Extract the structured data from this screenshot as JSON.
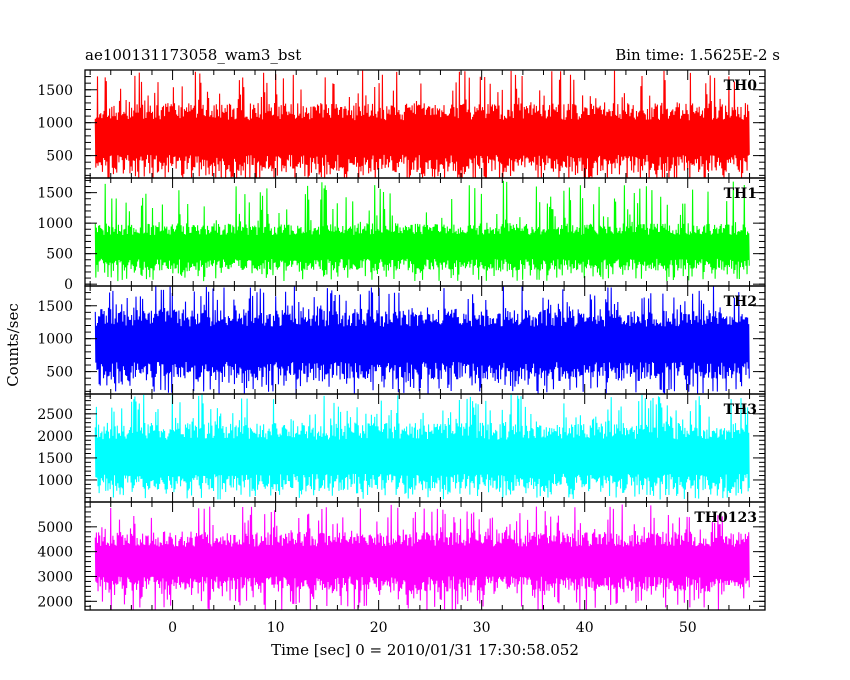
{
  "chart_data": {
    "type": "line",
    "title_left": "ae100131173058_wam3_bst",
    "title_right": "Bin time: 1.5625E-2 s",
    "xlabel": "Time [sec] 0 = 2010/01/31 17:30:58.052",
    "ylabel": "Counts/sec",
    "xlim": [
      -8.5,
      57.5
    ],
    "x_ticks": [
      0,
      10,
      20,
      30,
      40,
      50
    ],
    "x_data_range": [
      -7.5,
      56.0
    ],
    "bin_time": 0.015625,
    "grid": false,
    "panels": [
      {
        "name": "TH0",
        "color": "#ff0000",
        "ylim": [
          160,
          1800
        ],
        "yticks": [
          500,
          1000,
          1500
        ],
        "band_low": 250,
        "band_high": 1300,
        "spike_min": 60,
        "spike_max": 1800
      },
      {
        "name": "TH1",
        "color": "#00ff00",
        "ylim": [
          -30,
          1740
        ],
        "yticks": [
          0,
          500,
          1000,
          1500
        ],
        "band_low": 220,
        "band_high": 1000,
        "spike_min": 50,
        "spike_max": 1700
      },
      {
        "name": "TH2",
        "color": "#0000ff",
        "ylim": [
          160,
          1800
        ],
        "yticks": [
          500,
          1000,
          1500
        ],
        "band_low": 380,
        "band_high": 1450,
        "spike_min": 150,
        "spike_max": 1800
      },
      {
        "name": "TH3",
        "color": "#00ffff",
        "ylim": [
          500,
          2950
        ],
        "yticks": [
          1000,
          1500,
          2000,
          2500
        ],
        "band_low": 750,
        "band_high": 2300,
        "spike_min": 550,
        "spike_max": 2950
      },
      {
        "name": "TH0123",
        "color": "#ff00ff",
        "ylim": [
          1650,
          6000
        ],
        "yticks": [
          2000,
          3000,
          4000,
          5000
        ],
        "band_low": 2400,
        "band_high": 4800,
        "spike_min": 1600,
        "spike_max": 5900
      }
    ]
  }
}
